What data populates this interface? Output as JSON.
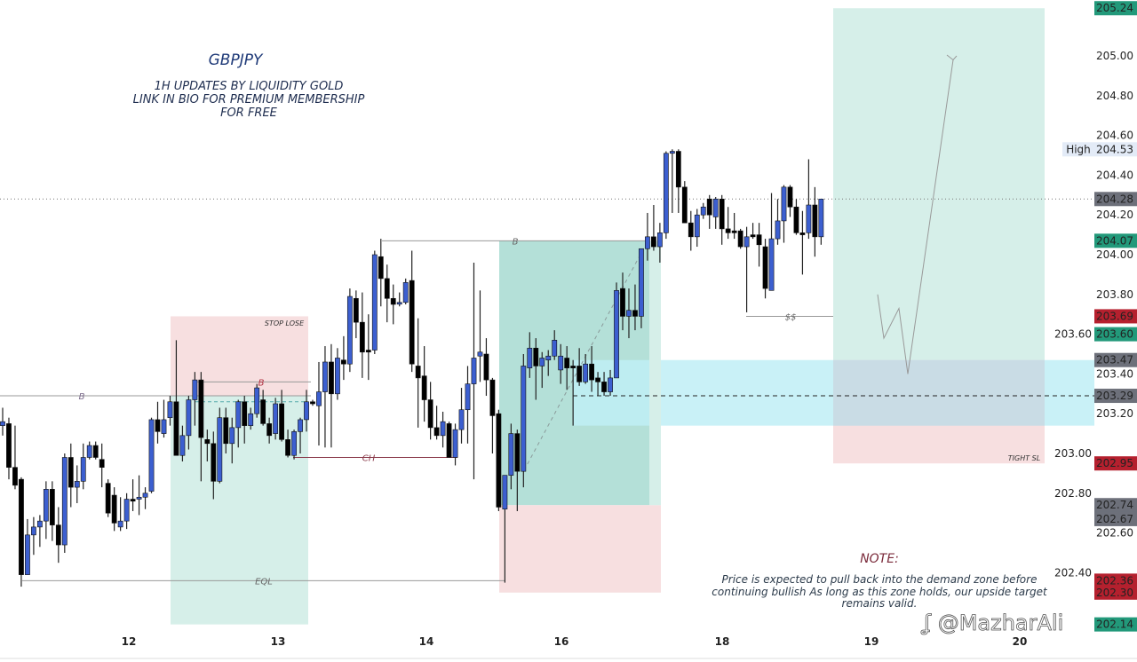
{
  "header": {
    "symbol": "GBPJPY",
    "subtitle_lines": [
      "1H UPDATES BY LIQUIDITY GOLD",
      "LINK IN BIO FOR PREMIUM MEMBERSHIP",
      "FOR FREE"
    ]
  },
  "note": {
    "title": "NOTE:",
    "lines": [
      "Price is expected to pull back into the demand zone before",
      "continuing bullish As long as this zone holds, our upside target",
      "remains valid."
    ]
  },
  "watermark": {
    "icon": "brand-logo-icon",
    "text": "@MazharAli"
  },
  "colors": {
    "bull_candle": "#3c5fd0",
    "bear_candle": "#000000",
    "badge_green": "#22997a",
    "badge_red": "#b5202e",
    "badge_gray": "#6d707a",
    "badge_high": "#e3ebf7",
    "target_zone": "#d6efe9",
    "stop_zone": "#f7dfe0",
    "demand_zone": "#bfeef6",
    "entry_zone": "#b4e0d8"
  },
  "chart_data": {
    "type": "candlestick",
    "title": "GBPJPY",
    "timeframe": "1H",
    "ylim": [
      202.1,
      205.3
    ],
    "grid": false,
    "y_ticks": [
      "205.00",
      "204.80",
      "204.60",
      "204.40",
      "204.20",
      "204.00",
      "203.80",
      "203.60",
      "203.40",
      "203.20",
      "203.00",
      "202.80",
      "202.60",
      "202.40"
    ],
    "x_ticks": [
      "12",
      "13",
      "14",
      "16",
      "18",
      "19",
      "20"
    ],
    "candles_ohlc": [
      [
        203.14,
        203.23,
        203.09,
        203.16
      ],
      [
        203.15,
        203.18,
        202.87,
        202.93
      ],
      [
        202.93,
        203.14,
        202.82,
        202.84
      ],
      [
        202.87,
        202.88,
        202.33,
        202.39
      ],
      [
        202.39,
        202.67,
        202.39,
        202.59
      ],
      [
        202.59,
        202.68,
        202.49,
        202.63
      ],
      [
        202.63,
        202.69,
        202.53,
        202.66
      ],
      [
        202.66,
        202.86,
        202.57,
        202.82
      ],
      [
        202.82,
        202.86,
        202.56,
        202.64
      ],
      [
        202.64,
        202.73,
        202.45,
        202.54
      ],
      [
        202.54,
        203.0,
        202.5,
        202.98
      ],
      [
        202.98,
        203.05,
        202.73,
        202.83
      ],
      [
        202.83,
        202.94,
        202.75,
        202.86
      ],
      [
        202.86,
        203.05,
        202.82,
        202.98
      ],
      [
        202.98,
        203.06,
        202.97,
        203.04
      ],
      [
        203.04,
        203.06,
        202.97,
        202.98
      ],
      [
        202.97,
        203.05,
        202.83,
        202.93
      ],
      [
        202.85,
        202.87,
        202.68,
        202.7
      ],
      [
        202.79,
        202.83,
        202.61,
        202.65
      ],
      [
        202.63,
        202.78,
        202.61,
        202.66
      ],
      [
        202.66,
        202.8,
        202.62,
        202.77
      ],
      [
        202.77,
        202.87,
        202.71,
        202.76
      ],
      [
        202.77,
        202.89,
        202.69,
        202.78
      ],
      [
        202.78,
        202.83,
        202.72,
        202.8
      ],
      [
        202.81,
        203.18,
        202.8,
        203.17
      ],
      [
        203.17,
        203.26,
        203.05,
        203.11
      ],
      [
        203.1,
        203.27,
        203.08,
        203.17
      ],
      [
        203.18,
        203.29,
        203.14,
        203.26
      ],
      [
        203.26,
        203.57,
        202.99,
        202.99
      ],
      [
        202.99,
        203.14,
        202.96,
        203.09
      ],
      [
        203.09,
        203.29,
        203.02,
        203.27
      ],
      [
        203.27,
        203.41,
        203.14,
        203.37
      ],
      [
        203.37,
        203.41,
        202.86,
        203.08
      ],
      [
        203.07,
        203.12,
        202.96,
        203.05
      ],
      [
        203.05,
        203.11,
        202.77,
        202.86
      ],
      [
        202.86,
        203.23,
        202.85,
        203.18
      ],
      [
        203.18,
        203.23,
        203.0,
        203.05
      ],
      [
        203.05,
        203.18,
        202.95,
        203.13
      ],
      [
        203.13,
        203.27,
        203.03,
        203.26
      ],
      [
        203.26,
        203.29,
        203.05,
        203.14
      ],
      [
        203.14,
        203.23,
        203.12,
        203.2
      ],
      [
        203.2,
        203.35,
        203.18,
        203.33
      ],
      [
        203.27,
        203.32,
        203.14,
        203.15
      ],
      [
        203.15,
        203.18,
        203.05,
        203.09
      ],
      [
        203.1,
        203.28,
        203.07,
        203.25
      ],
      [
        203.25,
        203.32,
        203.06,
        203.07
      ],
      [
        203.07,
        203.12,
        202.98,
        202.99
      ],
      [
        202.99,
        203.12,
        202.97,
        203.11
      ],
      [
        203.11,
        203.18,
        203.0,
        203.17
      ],
      [
        203.17,
        203.32,
        203.11,
        203.26
      ],
      [
        203.26,
        203.27,
        203.24,
        203.25
      ],
      [
        203.24,
        203.46,
        203.04,
        203.31
      ],
      [
        203.31,
        203.54,
        203.03,
        203.46
      ],
      [
        203.46,
        203.55,
        203.03,
        203.3
      ],
      [
        203.3,
        203.53,
        203.27,
        203.48
      ],
      [
        203.47,
        203.59,
        203.37,
        203.45
      ],
      [
        203.45,
        203.83,
        203.41,
        203.79
      ],
      [
        203.78,
        203.82,
        203.58,
        203.66
      ],
      [
        203.66,
        203.81,
        203.38,
        203.51
      ],
      [
        203.52,
        203.7,
        203.37,
        203.51
      ],
      [
        203.52,
        204.02,
        203.5,
        204.0
      ],
      [
        203.99,
        204.08,
        203.74,
        203.88
      ],
      [
        203.88,
        203.95,
        203.66,
        203.78
      ],
      [
        203.78,
        203.85,
        203.65,
        203.75
      ],
      [
        203.76,
        203.81,
        203.74,
        203.76
      ],
      [
        203.76,
        203.88,
        203.75,
        203.86
      ],
      [
        203.87,
        204.02,
        203.41,
        203.45
      ],
      [
        203.44,
        203.68,
        203.13,
        203.38
      ],
      [
        203.39,
        203.54,
        203.16,
        203.27
      ],
      [
        203.27,
        203.36,
        203.07,
        203.13
      ],
      [
        203.13,
        203.24,
        203.07,
        203.09
      ],
      [
        203.09,
        203.21,
        203.03,
        203.16
      ],
      [
        203.15,
        203.16,
        202.98,
        202.98
      ],
      [
        202.98,
        203.15,
        202.94,
        203.12
      ],
      [
        203.12,
        203.33,
        203.05,
        203.22
      ],
      [
        203.22,
        203.44,
        203.05,
        203.35
      ],
      [
        203.35,
        203.96,
        202.87,
        203.48
      ],
      [
        203.49,
        203.82,
        203.36,
        203.51
      ],
      [
        203.5,
        203.58,
        203.29,
        203.37
      ],
      [
        203.37,
        203.38,
        203.0,
        203.19
      ],
      [
        203.2,
        203.22,
        202.71,
        202.73
      ],
      [
        202.72,
        202.89,
        202.35,
        202.89
      ],
      [
        202.89,
        203.15,
        202.82,
        203.1
      ],
      [
        203.1,
        203.12,
        202.71,
        202.91
      ],
      [
        202.91,
        203.5,
        202.83,
        203.44
      ],
      [
        203.43,
        203.61,
        203.38,
        203.53
      ],
      [
        203.53,
        203.58,
        203.27,
        203.44
      ],
      [
        203.44,
        203.51,
        203.33,
        203.48
      ],
      [
        203.47,
        203.52,
        203.39,
        203.49
      ],
      [
        203.49,
        203.62,
        203.47,
        203.57
      ],
      [
        203.42,
        203.55,
        203.35,
        203.49
      ],
      [
        203.48,
        203.54,
        203.32,
        203.43
      ],
      [
        203.44,
        203.47,
        203.14,
        203.43
      ],
      [
        203.44,
        203.53,
        203.34,
        203.36
      ],
      [
        203.36,
        203.5,
        203.35,
        203.45
      ],
      [
        203.45,
        203.54,
        203.31,
        203.37
      ],
      [
        203.38,
        203.41,
        203.29,
        203.36
      ],
      [
        203.36,
        203.41,
        203.29,
        203.31
      ],
      [
        203.31,
        203.42,
        203.29,
        203.38
      ],
      [
        203.38,
        203.86,
        203.38,
        203.82
      ],
      [
        203.83,
        203.91,
        203.62,
        203.69
      ],
      [
        203.69,
        203.83,
        203.58,
        203.72
      ],
      [
        203.72,
        203.85,
        203.62,
        203.69
      ],
      [
        203.69,
        204.03,
        203.63,
        204.03
      ],
      [
        204.03,
        204.21,
        203.97,
        204.09
      ],
      [
        204.09,
        204.25,
        204.02,
        204.04
      ],
      [
        204.04,
        204.16,
        203.96,
        204.11
      ],
      [
        204.11,
        204.52,
        204.08,
        204.51
      ],
      [
        204.51,
        204.53,
        204.21,
        204.52
      ],
      [
        204.52,
        204.53,
        204.21,
        204.34
      ],
      [
        204.34,
        204.37,
        204.16,
        204.16
      ],
      [
        204.16,
        204.22,
        204.02,
        204.09
      ],
      [
        204.09,
        204.23,
        204.04,
        204.2
      ],
      [
        204.2,
        204.26,
        204.18,
        204.24
      ],
      [
        204.28,
        204.3,
        204.13,
        204.2
      ],
      [
        204.19,
        204.29,
        204.13,
        204.28
      ],
      [
        204.28,
        204.3,
        204.05,
        204.13
      ],
      [
        204.13,
        204.24,
        204.08,
        204.11
      ],
      [
        204.12,
        204.21,
        204.08,
        204.11
      ],
      [
        204.12,
        204.13,
        204.03,
        204.04
      ],
      [
        204.04,
        204.14,
        203.71,
        204.09
      ],
      [
        204.1,
        204.16,
        204.08,
        204.09
      ],
      [
        204.1,
        204.16,
        203.94,
        204.05
      ],
      [
        204.04,
        204.08,
        203.78,
        203.83
      ],
      [
        203.82,
        204.31,
        203.82,
        204.08
      ],
      [
        204.08,
        204.28,
        204.05,
        204.17
      ],
      [
        204.17,
        204.35,
        204.06,
        204.34
      ],
      [
        204.34,
        204.35,
        204.19,
        204.24
      ],
      [
        204.24,
        204.28,
        204.1,
        204.11
      ],
      [
        204.11,
        204.22,
        203.9,
        204.1
      ],
      [
        204.11,
        204.48,
        204.08,
        204.25
      ],
      [
        204.25,
        204.34,
        203.99,
        204.09
      ],
      [
        204.09,
        204.28,
        204.05,
        204.28
      ]
    ],
    "last_price": 204.28,
    "price_badges": [
      {
        "price": 205.24,
        "text": "205.24",
        "color": "green"
      },
      {
        "price": 204.53,
        "text": "204.53",
        "color": "high",
        "label": "High"
      },
      {
        "price": 204.28,
        "text": "204.28",
        "color": "gray"
      },
      {
        "price": 204.07,
        "text": "204.07",
        "color": "green"
      },
      {
        "price": 203.69,
        "text": "203.69",
        "color": "red"
      },
      {
        "price": 203.6,
        "text": "203.60",
        "color": "green"
      },
      {
        "price": 203.47,
        "text": "203.47",
        "color": "gray"
      },
      {
        "price": 203.29,
        "text": "203.29",
        "color": "gray"
      },
      {
        "price": 202.95,
        "text": "202.95",
        "color": "red"
      },
      {
        "price": 202.74,
        "text": "202.74",
        "color": "gray"
      },
      {
        "price": 202.67,
        "text": "202.67",
        "color": "gray"
      },
      {
        "price": 202.36,
        "text": "202.36",
        "color": "red"
      },
      {
        "price": 202.3,
        "text": "202.30",
        "color": "red"
      },
      {
        "price": 202.14,
        "text": "202.14",
        "color": "green"
      }
    ],
    "annotations": {
      "zones": [
        {
          "name": "stop-lose-zone-1",
          "top": 203.69,
          "bottom": 203.29,
          "kind": "stop"
        },
        {
          "name": "target-zone-1",
          "top": 203.29,
          "bottom": 202.14,
          "kind": "target"
        },
        {
          "name": "entry-zone-2",
          "top": 204.07,
          "bottom": 202.74,
          "kind": "entry"
        },
        {
          "name": "stop-zone-2",
          "top": 202.74,
          "bottom": 202.3,
          "kind": "stop"
        },
        {
          "name": "target-zone-3",
          "top": 205.24,
          "bottom": 203.47,
          "kind": "target"
        },
        {
          "name": "tight-sl-zone",
          "top": 203.47,
          "bottom": 202.95,
          "kind": "stop"
        },
        {
          "name": "demand-zone",
          "top": 203.47,
          "bottom": 203.14,
          "kind": "demand"
        }
      ],
      "lines": [
        {
          "name": "break-line-1",
          "price": 203.29,
          "label": "B"
        },
        {
          "name": "break-line-2",
          "price": 203.36,
          "label": "B"
        },
        {
          "name": "change-of-character-line",
          "price": 202.98,
          "label": "CH"
        },
        {
          "name": "equal-lows-line",
          "price": 202.36,
          "label": "EQL"
        },
        {
          "name": "break-line-3",
          "price": 204.07,
          "label": "B"
        },
        {
          "name": "liquidity-line",
          "price": 203.69,
          "label": "$$"
        },
        {
          "name": "demand-midline",
          "price": 203.29,
          "label": ""
        }
      ],
      "zone_labels": {
        "stop_lose": "STOP LOSE",
        "tight_sl": "TIGHT SL"
      },
      "projection_path": [
        203.8,
        203.58,
        203.73,
        203.4,
        204.98
      ]
    }
  }
}
